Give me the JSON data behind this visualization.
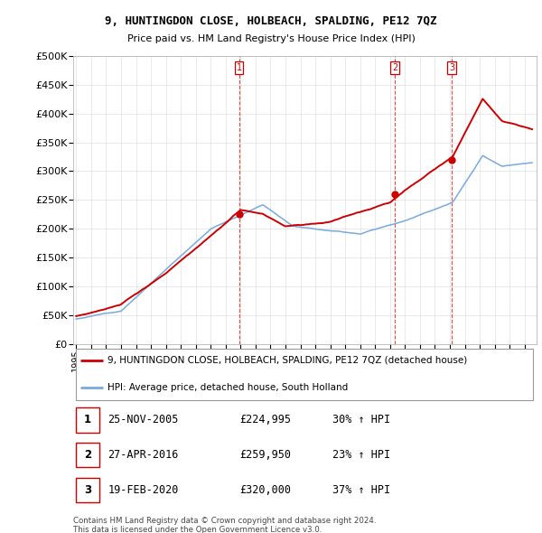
{
  "title": "9, HUNTINGDON CLOSE, HOLBEACH, SPALDING, PE12 7QZ",
  "subtitle": "Price paid vs. HM Land Registry's House Price Index (HPI)",
  "ylabel_ticks": [
    "£0",
    "£50K",
    "£100K",
    "£150K",
    "£200K",
    "£250K",
    "£300K",
    "£350K",
    "£400K",
    "£450K",
    "£500K"
  ],
  "ytick_values": [
    0,
    50000,
    100000,
    150000,
    200000,
    250000,
    300000,
    350000,
    400000,
    450000,
    500000
  ],
  "ylim": [
    0,
    500000
  ],
  "xlim_start": 1994.8,
  "xlim_end": 2025.8,
  "transaction_dates": [
    2005.9,
    2016.33,
    2020.13
  ],
  "transaction_prices": [
    224995,
    259950,
    320000
  ],
  "transaction_labels": [
    "1",
    "2",
    "3"
  ],
  "vline_color": "#ee3333",
  "property_line_color": "#cc0000",
  "hpi_line_color": "#77aadd",
  "legend_property_label": "9, HUNTINGDON CLOSE, HOLBEACH, SPALDING, PE12 7QZ (detached house)",
  "legend_hpi_label": "HPI: Average price, detached house, South Holland",
  "table_rows": [
    [
      "1",
      "25-NOV-2005",
      "£224,995",
      "30% ↑ HPI"
    ],
    [
      "2",
      "27-APR-2016",
      "£259,950",
      "23% ↑ HPI"
    ],
    [
      "3",
      "19-FEB-2020",
      "£320,000",
      "37% ↑ HPI"
    ]
  ],
  "footnote": "Contains HM Land Registry data © Crown copyright and database right 2024.\nThis data is licensed under the Open Government Licence v3.0.",
  "background_color": "#ffffff",
  "grid_color": "#e0e0e0",
  "xtick_years": [
    1995,
    1996,
    1997,
    1998,
    1999,
    2000,
    2001,
    2002,
    2003,
    2004,
    2005,
    2006,
    2007,
    2008,
    2009,
    2010,
    2011,
    2012,
    2013,
    2014,
    2015,
    2016,
    2017,
    2018,
    2019,
    2020,
    2021,
    2022,
    2023,
    2024,
    2025
  ]
}
